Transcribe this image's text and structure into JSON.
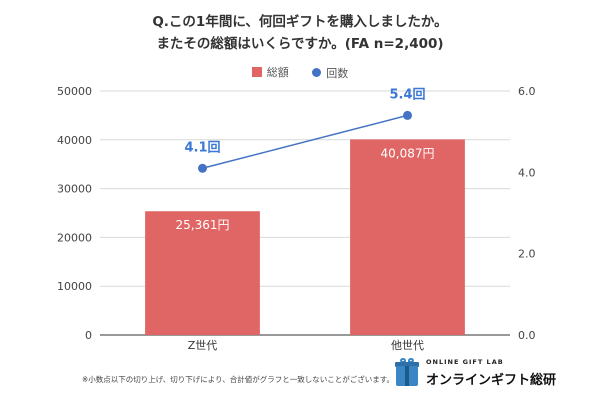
{
  "title": {
    "line1": "Q.この1年間に、何回ギフトを購入しましたか。",
    "line2": "またその総額はいくらですか。(FA n=2,400)"
  },
  "legend": {
    "bar_label": "総額",
    "line_label": "回数"
  },
  "footnote": "※小数点以下の切り上げ、切り下げにより、合計値がグラフと一致しないことがございます。",
  "logo": {
    "icon": "gift-box-icon",
    "text_en": "ONLINE GIFT LAB",
    "text_jp": "オンラインギフト総研"
  },
  "colors": {
    "bar": "#e06666",
    "line": "#4472c4",
    "line_label": "#3c78d8",
    "grid": "#d9d9d9"
  },
  "chart_data": {
    "type": "bar+line",
    "categories": [
      "Z世代",
      "他世代"
    ],
    "series": [
      {
        "name": "総額",
        "type": "bar",
        "axis": "left",
        "values": [
          25361,
          40087
        ],
        "labels": [
          "25,361円",
          "40,087円"
        ]
      },
      {
        "name": "回数",
        "type": "line",
        "axis": "right",
        "values": [
          4.1,
          5.4
        ],
        "labels": [
          "4.1回",
          "5.4回"
        ]
      }
    ],
    "left_axis": {
      "min": 0,
      "max": 50000,
      "ticks": [
        0,
        10000,
        20000,
        30000,
        40000,
        50000
      ],
      "tick_labels": [
        "0",
        "10000",
        "20000",
        "30000",
        "40000",
        "50000"
      ]
    },
    "right_axis": {
      "min": 0,
      "max": 6,
      "ticks": [
        0,
        2,
        4,
        6
      ],
      "tick_labels": [
        "0.0",
        "2.0",
        "4.0",
        "6.0"
      ]
    },
    "grid": true,
    "legend_position": "top"
  }
}
